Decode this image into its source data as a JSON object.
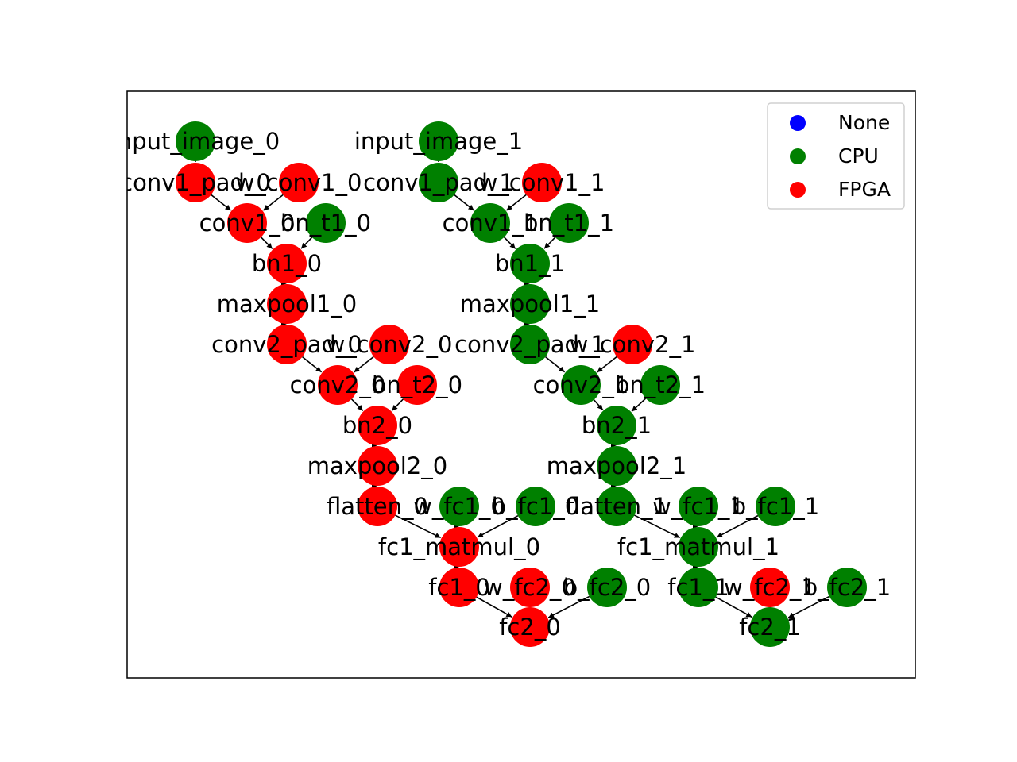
{
  "colors": {
    "None": "#0000ff",
    "CPU": "#008000",
    "FPGA": "#ff0000"
  },
  "legend": [
    {
      "label": "None"
    },
    {
      "label": "CPU"
    },
    {
      "label": "FPGA"
    }
  ],
  "nodes": [
    {
      "id": "input_image_0",
      "device": "CPU"
    },
    {
      "id": "conv1_pad_0",
      "device": "FPGA"
    },
    {
      "id": "w_conv1_0",
      "device": "FPGA"
    },
    {
      "id": "conv1_0",
      "device": "FPGA"
    },
    {
      "id": "bn_t1_0",
      "device": "CPU"
    },
    {
      "id": "bn1_0",
      "device": "FPGA"
    },
    {
      "id": "maxpool1_0",
      "device": "FPGA"
    },
    {
      "id": "conv2_pad_0",
      "device": "FPGA"
    },
    {
      "id": "w_conv2_0",
      "device": "FPGA"
    },
    {
      "id": "conv2_0",
      "device": "FPGA"
    },
    {
      "id": "bn_t2_0",
      "device": "FPGA"
    },
    {
      "id": "bn2_0",
      "device": "FPGA"
    },
    {
      "id": "maxpool2_0",
      "device": "FPGA"
    },
    {
      "id": "flatten_0",
      "device": "FPGA"
    },
    {
      "id": "w_fc1_0",
      "device": "CPU"
    },
    {
      "id": "b_fc1_0",
      "device": "CPU"
    },
    {
      "id": "fc1_matmul_0",
      "device": "FPGA"
    },
    {
      "id": "fc1_0",
      "device": "FPGA"
    },
    {
      "id": "w_fc2_0",
      "device": "FPGA"
    },
    {
      "id": "b_fc2_0",
      "device": "CPU"
    },
    {
      "id": "fc2_0",
      "device": "FPGA"
    },
    {
      "id": "input_image_1",
      "device": "CPU"
    },
    {
      "id": "conv1_pad_1",
      "device": "CPU"
    },
    {
      "id": "w_conv1_1",
      "device": "FPGA"
    },
    {
      "id": "conv1_1",
      "device": "CPU"
    },
    {
      "id": "bn_t1_1",
      "device": "CPU"
    },
    {
      "id": "bn1_1",
      "device": "CPU"
    },
    {
      "id": "maxpool1_1",
      "device": "CPU"
    },
    {
      "id": "conv2_pad_1",
      "device": "CPU"
    },
    {
      "id": "w_conv2_1",
      "device": "FPGA"
    },
    {
      "id": "conv2_1",
      "device": "CPU"
    },
    {
      "id": "bn_t2_1",
      "device": "CPU"
    },
    {
      "id": "bn2_1",
      "device": "CPU"
    },
    {
      "id": "maxpool2_1",
      "device": "CPU"
    },
    {
      "id": "flatten_1",
      "device": "CPU"
    },
    {
      "id": "w_fc1_1",
      "device": "CPU"
    },
    {
      "id": "b_fc1_1",
      "device": "CPU"
    },
    {
      "id": "fc1_matmul_1",
      "device": "CPU"
    },
    {
      "id": "fc1_1",
      "device": "CPU"
    },
    {
      "id": "w_fc2_1",
      "device": "FPGA"
    },
    {
      "id": "b_fc2_1",
      "device": "CPU"
    },
    {
      "id": "fc2_1",
      "device": "CPU"
    }
  ],
  "edges": [
    [
      "input_image_0",
      "conv1_pad_0"
    ],
    [
      "conv1_pad_0",
      "conv1_0"
    ],
    [
      "w_conv1_0",
      "conv1_0"
    ],
    [
      "conv1_0",
      "bn1_0"
    ],
    [
      "bn_t1_0",
      "bn1_0"
    ],
    [
      "bn1_0",
      "maxpool1_0"
    ],
    [
      "maxpool1_0",
      "conv2_pad_0"
    ],
    [
      "conv2_pad_0",
      "conv2_0"
    ],
    [
      "w_conv2_0",
      "conv2_0"
    ],
    [
      "conv2_0",
      "bn2_0"
    ],
    [
      "bn_t2_0",
      "bn2_0"
    ],
    [
      "bn2_0",
      "maxpool2_0"
    ],
    [
      "maxpool2_0",
      "flatten_0"
    ],
    [
      "flatten_0",
      "fc1_matmul_0"
    ],
    [
      "w_fc1_0",
      "fc1_matmul_0"
    ],
    [
      "b_fc1_0",
      "fc1_matmul_0"
    ],
    [
      "fc1_matmul_0",
      "fc1_0"
    ],
    [
      "fc1_0",
      "fc2_0"
    ],
    [
      "w_fc2_0",
      "fc2_0"
    ],
    [
      "b_fc2_0",
      "fc2_0"
    ],
    [
      "input_image_1",
      "conv1_pad_1"
    ],
    [
      "conv1_pad_1",
      "conv1_1"
    ],
    [
      "w_conv1_1",
      "conv1_1"
    ],
    [
      "conv1_1",
      "bn1_1"
    ],
    [
      "bn_t1_1",
      "bn1_1"
    ],
    [
      "bn1_1",
      "maxpool1_1"
    ],
    [
      "maxpool1_1",
      "conv2_pad_1"
    ],
    [
      "conv2_pad_1",
      "conv2_1"
    ],
    [
      "w_conv2_1",
      "conv2_1"
    ],
    [
      "conv2_1",
      "bn2_1"
    ],
    [
      "bn_t2_1",
      "bn2_1"
    ],
    [
      "bn2_1",
      "maxpool2_1"
    ],
    [
      "maxpool2_1",
      "flatten_1"
    ],
    [
      "flatten_1",
      "fc1_matmul_1"
    ],
    [
      "w_fc1_1",
      "fc1_matmul_1"
    ],
    [
      "b_fc1_1",
      "fc1_matmul_1"
    ],
    [
      "fc1_matmul_1",
      "fc1_1"
    ],
    [
      "fc1_1",
      "fc2_1"
    ],
    [
      "w_fc2_1",
      "fc2_1"
    ],
    [
      "b_fc2_1",
      "fc2_1"
    ]
  ]
}
